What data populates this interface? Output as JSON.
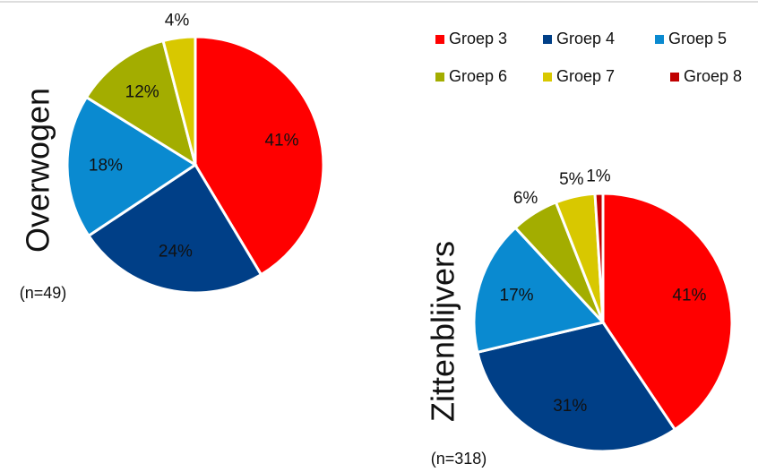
{
  "chart_data": [
    {
      "type": "pie",
      "title": "Overwogen",
      "subtitle": "(n=49)",
      "categories": [
        "Groep 3",
        "Groep 4",
        "Groep 5",
        "Groep 6",
        "Groep 7"
      ],
      "values": [
        41,
        24,
        18,
        12,
        4
      ],
      "value_labels": [
        "41%",
        "24%",
        "18%",
        "12%",
        "4%"
      ],
      "colors": [
        "#ff0000",
        "#003f87",
        "#0a8ad0",
        "#a3ad00",
        "#d8c800"
      ]
    },
    {
      "type": "pie",
      "title": "Zittenblijvers",
      "subtitle": "(n=318)",
      "categories": [
        "Groep 3",
        "Groep 4",
        "Groep 5",
        "Groep 6",
        "Groep 7",
        "Groep 8"
      ],
      "values": [
        41,
        31,
        17,
        6,
        5,
        1
      ],
      "value_labels": [
        "41%",
        "31%",
        "17%",
        "6%",
        "5%",
        "1%"
      ],
      "colors": [
        "#ff0000",
        "#003f87",
        "#0a8ad0",
        "#a3ad00",
        "#d8c800",
        "#c00000"
      ]
    }
  ]
}
